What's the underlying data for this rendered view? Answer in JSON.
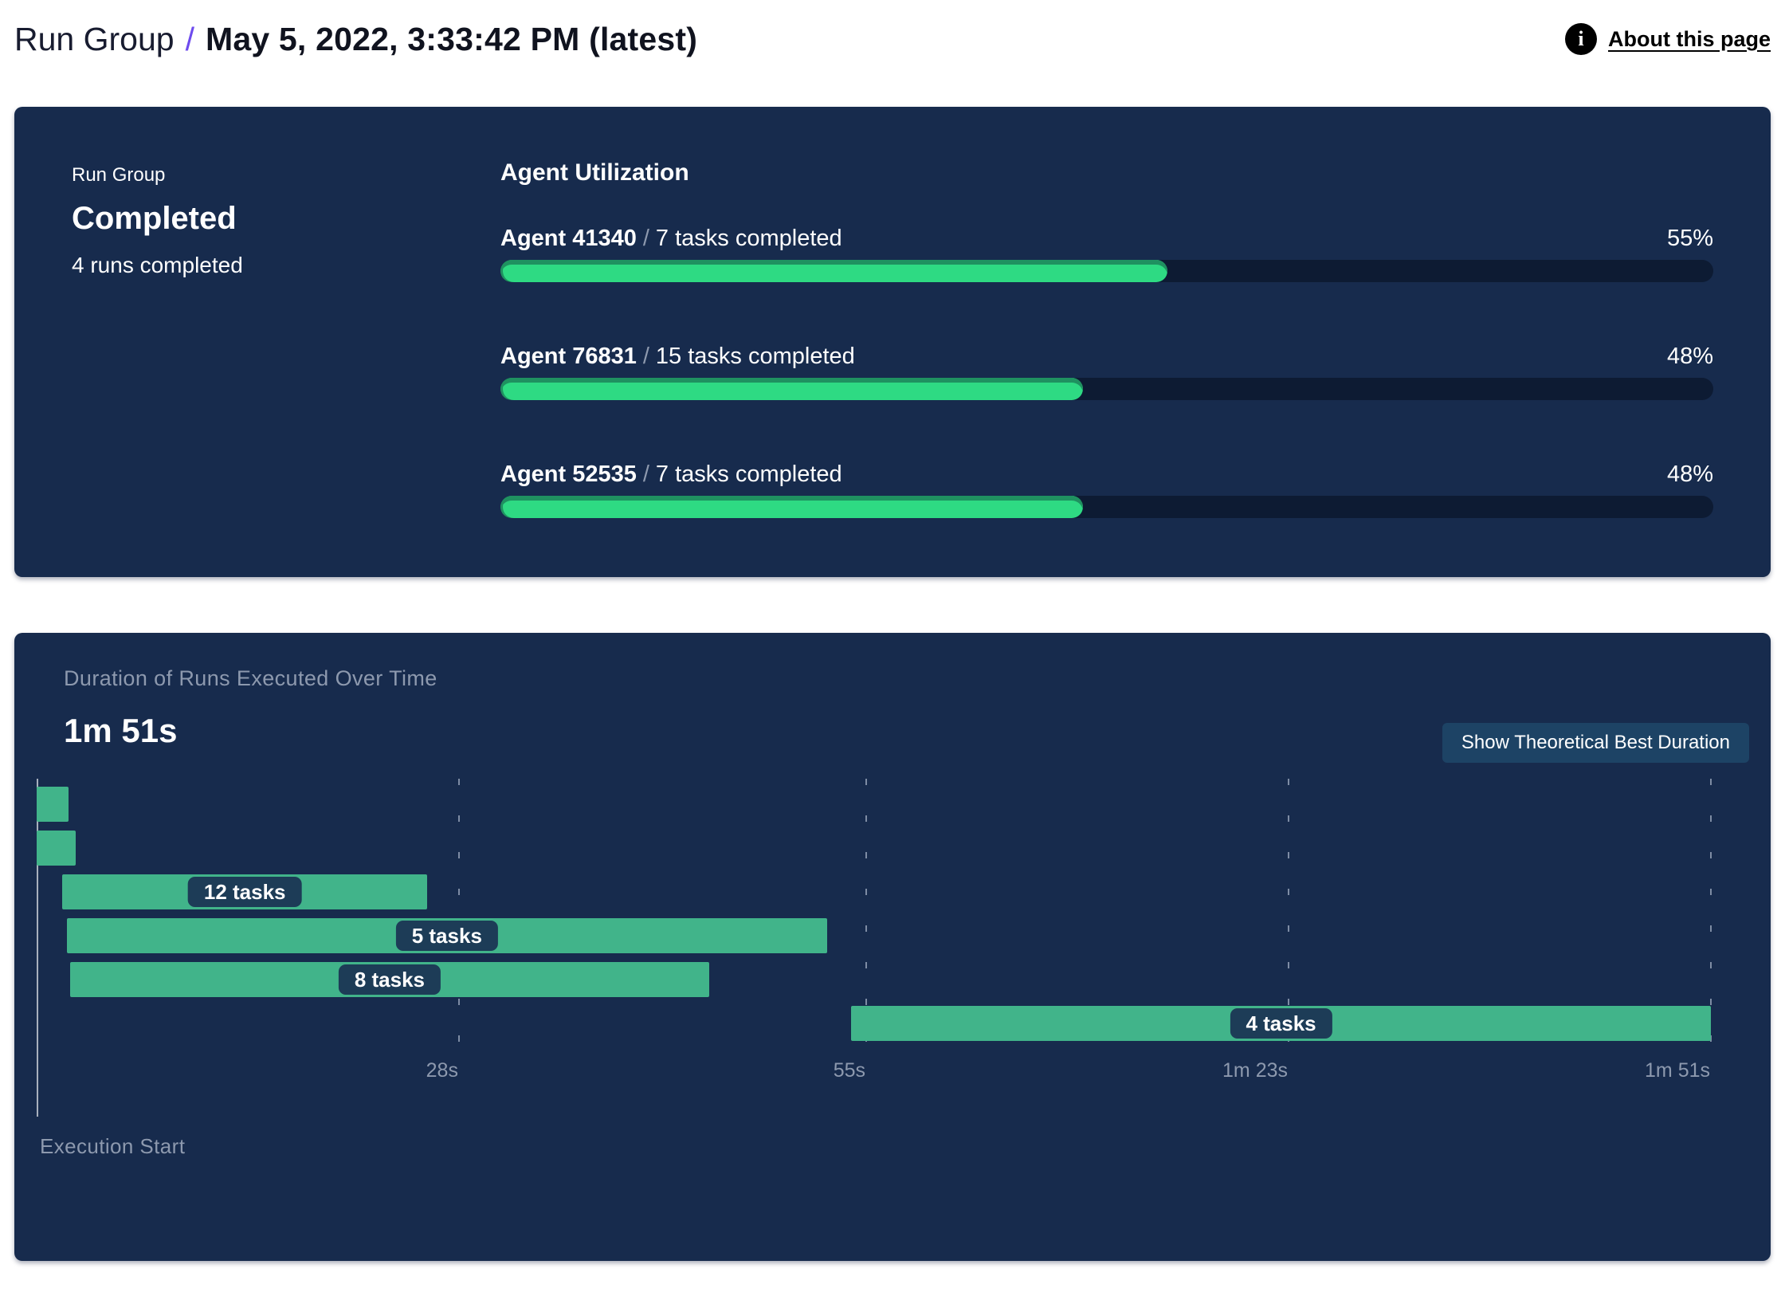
{
  "header": {
    "breadcrumb_root": "Run Group",
    "separator": "/",
    "title": "May 5, 2022, 3:33:42 PM (latest)",
    "about": {
      "label": "About this page",
      "icon": "info-icon",
      "icon_glyph": "i"
    }
  },
  "run_group_card": {
    "eyebrow": "Run Group",
    "status": "Completed",
    "runs_summary": "4 runs completed",
    "agent_utilization": {
      "title": "Agent Utilization",
      "separator": "/",
      "agents": [
        {
          "name": "Agent 41340",
          "tasks": "7 tasks completed",
          "percent": 55,
          "percent_label": "55%"
        },
        {
          "name": "Agent 76831",
          "tasks": "15 tasks completed",
          "percent": 48,
          "percent_label": "48%"
        },
        {
          "name": "Agent 52535",
          "tasks": "7 tasks completed",
          "percent": 48,
          "percent_label": "48%"
        }
      ]
    }
  },
  "duration_card": {
    "title": "Duration of Runs Executed Over Time",
    "total_duration": "1m 51s",
    "button_label": "Show Theoretical Best Duration",
    "execution_start_label": "Execution Start"
  },
  "chart_data": {
    "type": "bar",
    "subtype": "gantt-timeline",
    "title": "Duration of Runs Executed Over Time",
    "total_duration_label": "1m 51s",
    "x_axis": {
      "unit": "seconds",
      "min": 0,
      "max": 111,
      "origin_label": "Execution Start",
      "grid": "dashed-vertical",
      "ticks": [
        {
          "label": "28s",
          "value": 28
        },
        {
          "label": "55s",
          "value": 55
        },
        {
          "label": "1m 23s",
          "value": 83
        },
        {
          "label": "1m 51s",
          "value": 111
        }
      ]
    },
    "runs": [
      {
        "start": 0,
        "end": 2.1,
        "label": ""
      },
      {
        "start": 0,
        "end": 2.6,
        "label": ""
      },
      {
        "start": 1.7,
        "end": 25.9,
        "label": "12 tasks"
      },
      {
        "start": 2.0,
        "end": 52.4,
        "label": "5 tasks"
      },
      {
        "start": 2.2,
        "end": 44.6,
        "label": "8 tasks"
      },
      {
        "start": 54.0,
        "end": 111,
        "label": "4 tasks"
      }
    ],
    "colors": {
      "bar": "#41b48a",
      "label_pill": "#1d3c57",
      "label_text": "#ffffff"
    }
  },
  "colors": {
    "page_background": "#ffffff",
    "card_background": "#172b4d",
    "progress_fill": "#2eda83",
    "progress_rim": "#1f9160",
    "progress_track": "#0d1b33",
    "accent_purple": "#6e4bee",
    "muted_text": "#8d99ae",
    "button_background": "#1d4365"
  }
}
